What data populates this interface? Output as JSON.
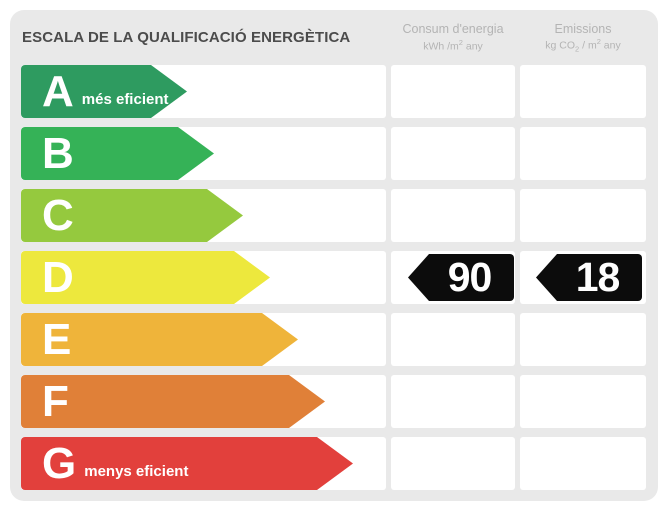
{
  "label": {
    "title": "ESCALA DE LA QUALIFICACIÓ ENERGÈTICA"
  },
  "columns": {
    "consum": {
      "name": "Consum d'energia",
      "unit_parts": {
        "base": "kWh /m",
        "sup": "2",
        "tail": " any"
      }
    },
    "emissions": {
      "name": "Emissions",
      "unit_parts": {
        "base": "kg CO",
        "sub": "2",
        "mid": " / m",
        "sup": "2",
        "tail": " any"
      }
    }
  },
  "scale_rows": [
    {
      "grade": "A",
      "note": "més eficient",
      "color": "#2E9B60",
      "arrow_width": 166
    },
    {
      "grade": "B",
      "note": "",
      "color": "#35B257",
      "arrow_width": 193
    },
    {
      "grade": "C",
      "note": "",
      "color": "#95C93E",
      "arrow_width": 222
    },
    {
      "grade": "D",
      "note": "",
      "color": "#EDE83D",
      "arrow_width": 249
    },
    {
      "grade": "E",
      "note": "",
      "color": "#EFB43A",
      "arrow_width": 277
    },
    {
      "grade": "F",
      "note": "",
      "color": "#E08038",
      "arrow_width": 304
    },
    {
      "grade": "G",
      "note": "menys eficient",
      "color": "#E2403C",
      "arrow_width": 332
    }
  ],
  "rating": {
    "grade": "D",
    "consum_value": "90",
    "emissions_value": "18",
    "badge_color": "#0C0C0C",
    "value_text_color": "#FFFFFF"
  },
  "chart_data": {
    "type": "bar",
    "title": "ESCALA DE LA QUALIFICACIÓ ENERGÈTICA",
    "categories": [
      "A",
      "B",
      "C",
      "D",
      "E",
      "F",
      "G"
    ],
    "bar_colors": [
      "#2E9B60",
      "#35B257",
      "#95C93E",
      "#EDE83D",
      "#EFB43A",
      "#E08038",
      "#E2403C"
    ],
    "bar_relative_widths": [
      166,
      193,
      222,
      249,
      277,
      304,
      332
    ],
    "annotations": {
      "A": "més eficient",
      "G": "menys eficient"
    },
    "rated_grade": "D",
    "values": {
      "consum_kwh_m2_any": 90,
      "emissions_kg_co2_m2_any": 18
    },
    "value_columns": [
      "Consum d'energia (kWh/m² any)",
      "Emissions (kg CO₂/m² any)"
    ],
    "legend_position": "none",
    "grid": false
  }
}
